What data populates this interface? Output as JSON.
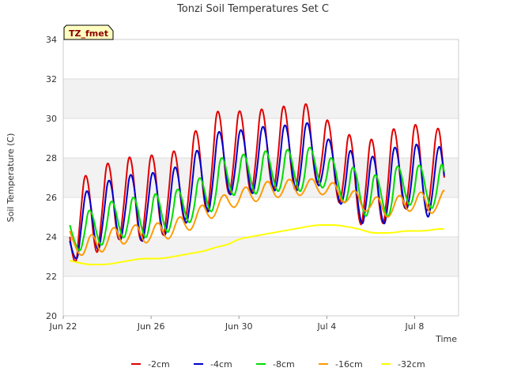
{
  "chart_data": {
    "type": "line",
    "title": "Tonzi Soil Temperatures Set C",
    "xlabel": "Time",
    "ylabel": "Soil Temperature (C)",
    "tag": "TZ_fmet",
    "xlim": [
      0.0,
      18.0
    ],
    "ylim": [
      20,
      34
    ],
    "x_ticks": [
      {
        "x": 0,
        "label": "Jun 22"
      },
      {
        "x": 4,
        "label": "Jun 26"
      },
      {
        "x": 8,
        "label": "Jun 30"
      },
      {
        "x": 12,
        "label": "Jul 4"
      },
      {
        "x": 16,
        "label": "Jul 8"
      }
    ],
    "y_ticks": [
      20,
      22,
      24,
      26,
      28,
      30,
      32,
      34
    ],
    "grid": true,
    "legend_position": "bottom",
    "series": [
      {
        "name": "-2cm",
        "color": "#e00000",
        "x": [
          0.3,
          0.55,
          0.75,
          1.05,
          1.5,
          1.75,
          2.05,
          2.5,
          2.75,
          3.05,
          3.5,
          3.75,
          4.05,
          4.5,
          4.75,
          5.05,
          5.5,
          5.75,
          6.05,
          6.5,
          6.75,
          7.05,
          7.5,
          7.75,
          8.05,
          8.5,
          8.75,
          9.05,
          9.5,
          9.75,
          10.05,
          10.5,
          10.75,
          11.05,
          11.5,
          11.75,
          12.05,
          12.5,
          12.75,
          13.05,
          13.5,
          13.75,
          14.05,
          14.5,
          14.75,
          15.05,
          15.5,
          15.75,
          16.05,
          16.5,
          16.75,
          17.05,
          17.35
        ],
        "y": [
          24.0,
          21.9,
          24.7,
          28.2,
          22.3,
          25.0,
          28.9,
          23.0,
          25.5,
          29.2,
          22.9,
          25.5,
          29.3,
          23.3,
          25.5,
          29.5,
          24.0,
          26.5,
          30.6,
          24.4,
          27.0,
          31.7,
          25.4,
          27.5,
          31.6,
          25.5,
          27.5,
          31.7,
          25.7,
          27.5,
          31.9,
          25.7,
          27.5,
          32.0,
          26.2,
          27.5,
          31.0,
          25.2,
          26.5,
          30.4,
          23.8,
          26.0,
          30.2,
          23.9,
          26.0,
          30.8,
          24.8,
          26.5,
          31.0,
          24.6,
          26.5,
          30.4,
          27.0
        ]
      },
      {
        "name": "-4cm",
        "color": "#0000cc",
        "x": [
          0.3,
          0.6,
          0.8,
          1.1,
          1.55,
          1.8,
          2.1,
          2.55,
          2.8,
          3.1,
          3.55,
          3.8,
          4.1,
          4.55,
          4.8,
          5.1,
          5.55,
          5.8,
          6.1,
          6.55,
          6.8,
          7.1,
          7.55,
          7.8,
          8.1,
          8.55,
          8.8,
          9.1,
          9.55,
          9.8,
          10.1,
          10.55,
          10.8,
          11.1,
          11.55,
          11.8,
          12.1,
          12.55,
          12.8,
          13.1,
          13.55,
          13.8,
          14.1,
          14.55,
          14.8,
          15.1,
          15.55,
          15.8,
          16.1,
          16.55,
          16.8,
          17.1,
          17.35
        ],
        "y": [
          23.8,
          22.3,
          24.3,
          27.2,
          22.7,
          24.6,
          27.8,
          23.2,
          25.0,
          28.1,
          23.1,
          25.0,
          28.2,
          23.5,
          25.0,
          28.5,
          24.1,
          25.8,
          29.4,
          24.6,
          26.5,
          30.4,
          25.6,
          27.0,
          30.4,
          25.7,
          27.0,
          30.6,
          25.9,
          27.0,
          30.7,
          25.9,
          27.0,
          30.8,
          26.3,
          27.0,
          29.8,
          25.4,
          26.0,
          29.4,
          24.1,
          25.6,
          29.1,
          24.1,
          25.6,
          29.6,
          25.0,
          26.0,
          29.8,
          24.4,
          26.0,
          29.2,
          27.1
        ]
      },
      {
        "name": "-8cm",
        "color": "#00dd00",
        "x": [
          0.3,
          0.7,
          0.95,
          1.2,
          1.7,
          1.95,
          2.2,
          2.7,
          2.95,
          3.2,
          3.7,
          3.95,
          4.2,
          4.7,
          4.95,
          5.2,
          5.7,
          5.95,
          6.2,
          6.7,
          6.95,
          7.2,
          7.7,
          7.95,
          8.2,
          8.7,
          8.95,
          9.2,
          9.7,
          9.95,
          10.2,
          10.7,
          10.95,
          11.2,
          11.7,
          11.95,
          12.2,
          12.7,
          12.95,
          13.2,
          13.7,
          13.95,
          14.2,
          14.7,
          14.95,
          15.2,
          15.7,
          15.95,
          16.2,
          16.7,
          16.95,
          17.2,
          17.35
        ],
        "y": [
          24.6,
          22.9,
          24.0,
          25.9,
          23.2,
          24.3,
          26.4,
          23.6,
          24.6,
          26.6,
          23.6,
          24.6,
          26.8,
          23.9,
          24.8,
          27.0,
          24.4,
          25.3,
          27.6,
          24.9,
          26.0,
          28.7,
          25.8,
          26.6,
          28.8,
          25.9,
          26.6,
          29.0,
          26.1,
          26.6,
          29.1,
          26.1,
          26.6,
          29.2,
          26.4,
          26.6,
          28.6,
          25.6,
          25.9,
          28.2,
          24.8,
          25.4,
          27.8,
          24.8,
          25.4,
          28.3,
          25.4,
          25.9,
          28.3,
          25.2,
          25.8,
          27.9,
          27.3
        ]
      },
      {
        "name": "-16cm",
        "color": "#ff9900",
        "x": [
          0.3,
          0.6,
          0.85,
          1.0,
          1.3,
          1.65,
          1.9,
          2.3,
          2.65,
          2.9,
          3.3,
          3.65,
          3.9,
          4.3,
          4.65,
          4.9,
          5.3,
          5.65,
          5.9,
          6.3,
          6.65,
          6.9,
          7.3,
          7.65,
          7.9,
          8.3,
          8.65,
          8.9,
          9.3,
          9.65,
          9.9,
          10.3,
          10.65,
          10.9,
          11.3,
          11.65,
          11.9,
          12.3,
          12.65,
          12.9,
          13.3,
          13.65,
          13.9,
          14.3,
          14.65,
          14.9,
          15.3,
          15.65,
          15.9,
          16.3,
          16.65,
          16.9,
          17.3,
          17.35
        ],
        "y": [
          24.3,
          23.3,
          23.0,
          23.3,
          24.4,
          23.2,
          23.3,
          24.8,
          23.6,
          23.7,
          24.9,
          23.7,
          23.7,
          25.0,
          23.9,
          23.9,
          25.3,
          24.3,
          24.4,
          25.9,
          24.9,
          25.0,
          26.4,
          25.5,
          25.5,
          26.8,
          25.8,
          25.8,
          27.1,
          26.0,
          26.0,
          27.2,
          26.1,
          26.1,
          27.2,
          26.2,
          26.1,
          27.0,
          25.8,
          25.7,
          26.6,
          25.3,
          25.3,
          26.3,
          25.0,
          25.0,
          26.4,
          25.3,
          25.3,
          26.6,
          25.2,
          25.2,
          26.4,
          26.3
        ]
      },
      {
        "name": "-32cm",
        "color": "#ffff00",
        "x": [
          0.3,
          1.0,
          1.5,
          2.0,
          2.5,
          3.0,
          3.5,
          4.0,
          4.5,
          5.0,
          5.5,
          6.0,
          6.5,
          7.0,
          7.5,
          8.0,
          8.5,
          9.0,
          9.5,
          10.0,
          10.5,
          11.0,
          11.5,
          12.0,
          12.5,
          13.0,
          13.5,
          14.0,
          14.5,
          15.0,
          15.5,
          16.0,
          16.5,
          17.0,
          17.35
        ],
        "y": [
          22.8,
          22.6,
          22.6,
          22.6,
          22.7,
          22.8,
          22.9,
          22.9,
          22.9,
          23.0,
          23.1,
          23.2,
          23.3,
          23.5,
          23.6,
          23.9,
          24.0,
          24.1,
          24.2,
          24.3,
          24.4,
          24.5,
          24.6,
          24.6,
          24.6,
          24.5,
          24.4,
          24.2,
          24.2,
          24.2,
          24.3,
          24.3,
          24.3,
          24.4,
          24.4
        ]
      }
    ]
  }
}
